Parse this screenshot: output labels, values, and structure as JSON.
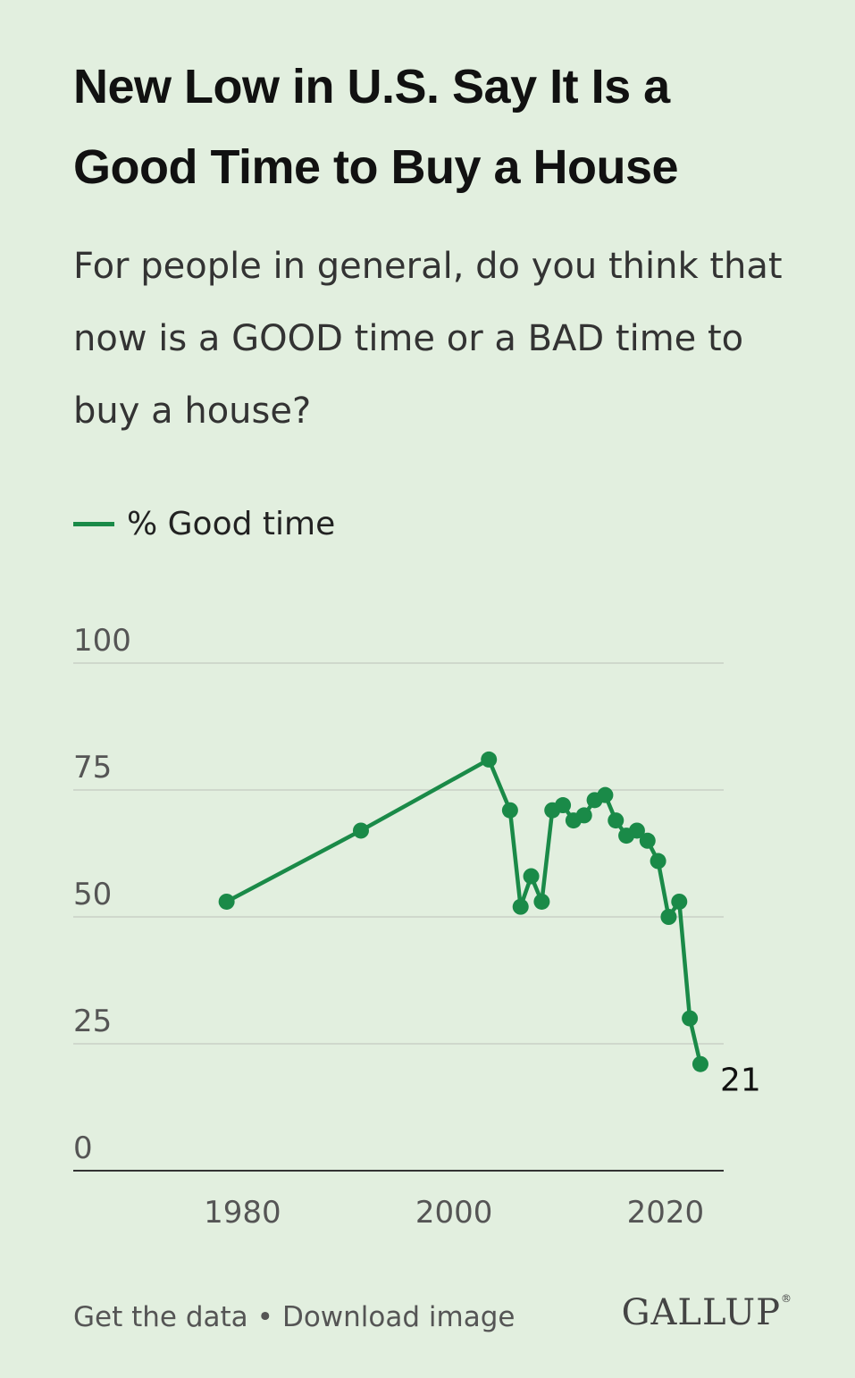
{
  "title": "New Low in U.S. Say It Is a Good Time to Buy a House",
  "subtitle": "For people in general, do you think that now is a GOOD time or a BAD time to buy a house?",
  "legend_label": "% Good time",
  "footer": {
    "get_data": "Get the data",
    "separator": "•",
    "download": "Download image"
  },
  "logo": "GALLUP",
  "colors": {
    "line": "#1a8a48",
    "grid": "#cfd8cc",
    "axis": "#333333",
    "background": "#e2efdf"
  },
  "chart_data": {
    "type": "line",
    "series": [
      {
        "name": "% Good time",
        "points": [
          {
            "x": 1978.5,
            "y": 53
          },
          {
            "x": 1991.2,
            "y": 67
          },
          {
            "x": 2003.3,
            "y": 81
          },
          {
            "x": 2005.3,
            "y": 71
          },
          {
            "x": 2006.3,
            "y": 52
          },
          {
            "x": 2007.3,
            "y": 58
          },
          {
            "x": 2008.3,
            "y": 53
          },
          {
            "x": 2009.3,
            "y": 71
          },
          {
            "x": 2010.3,
            "y": 72
          },
          {
            "x": 2011.3,
            "y": 69
          },
          {
            "x": 2012.3,
            "y": 70
          },
          {
            "x": 2013.3,
            "y": 73
          },
          {
            "x": 2014.3,
            "y": 74
          },
          {
            "x": 2015.3,
            "y": 69
          },
          {
            "x": 2016.3,
            "y": 66
          },
          {
            "x": 2017.3,
            "y": 67
          },
          {
            "x": 2018.3,
            "y": 65
          },
          {
            "x": 2019.3,
            "y": 61
          },
          {
            "x": 2020.3,
            "y": 50
          },
          {
            "x": 2021.3,
            "y": 53
          },
          {
            "x": 2022.3,
            "y": 30
          },
          {
            "x": 2023.3,
            "y": 21
          }
        ]
      }
    ],
    "end_label": "21",
    "xlim": [
      1964,
      2025.5
    ],
    "ylim": [
      0,
      100
    ],
    "x_ticks": [
      1980,
      2000,
      2020
    ],
    "y_ticks": [
      0,
      25,
      50,
      75,
      100
    ],
    "grid": true,
    "legend_position": "top-left"
  }
}
